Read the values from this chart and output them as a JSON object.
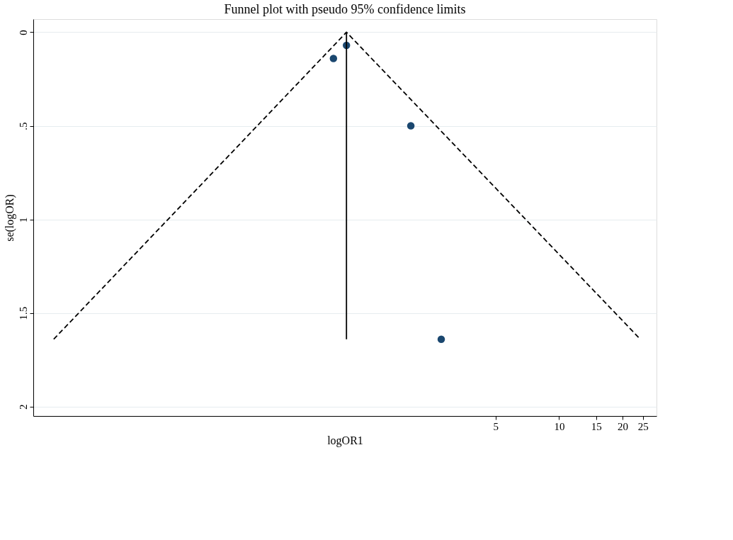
{
  "chart_data": {
    "type": "scatter",
    "title": "Funnel plot with pseudo 95% confidence limits",
    "xlabel": "logOR1",
    "ylabel": "se(logOR)",
    "log": "x",
    "xlim": [
      0.032,
      29
    ],
    "xticks": [
      5,
      10,
      15,
      20,
      25
    ],
    "ylim": [
      2.05,
      -0.07
    ],
    "yticks": [
      0,
      {
        "value": 0.5,
        "label": ".5"
      },
      1,
      1.5,
      2
    ],
    "grid": "y",
    "series": [
      {
        "marker": "circle",
        "color": "#1a476f",
        "x": [
          0.85,
          0.98,
          1.98,
          2.76
        ],
        "values": [
          0.14,
          0.07,
          0.5,
          1.64
        ]
      },
      {
        "type": "line",
        "color": "#000000",
        "line_style": "dashed",
        "marker": "none",
        "x": [
          0.04,
          0.98,
          24.3
        ],
        "values": [
          1.64,
          0,
          1.64
        ]
      },
      {
        "type": "line",
        "color": "#000000",
        "line_style": "solid",
        "marker": "none",
        "x": [
          0.98,
          0.98
        ],
        "values": [
          0,
          1.64
        ]
      }
    ]
  }
}
